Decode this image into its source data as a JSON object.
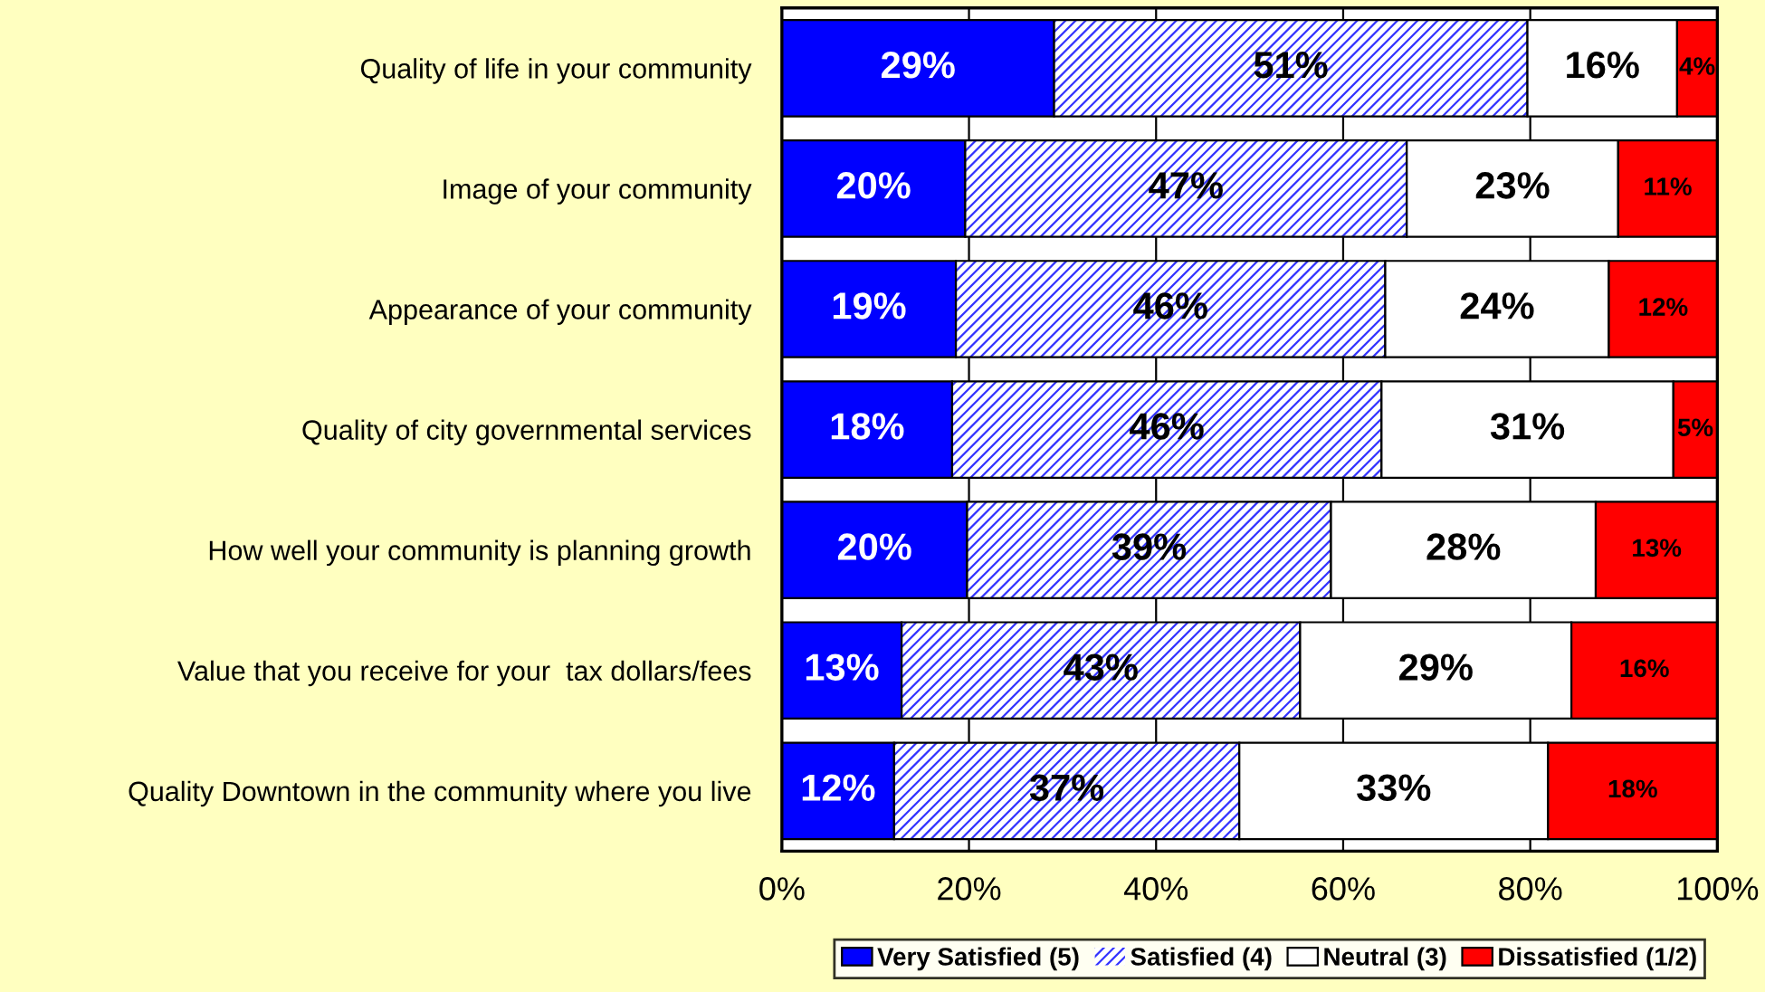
{
  "chart_data": {
    "type": "bar",
    "orientation": "horizontal",
    "stacked": true,
    "categories": [
      "Quality of life in your community",
      "Image of your community",
      "Appearance of your community",
      "Quality of city governmental services",
      "How well your community is planning growth",
      "Value that you receive for your  tax dollars/fees",
      "Quality Downtown in the community where you live"
    ],
    "series": [
      {
        "name": "Very Satisfied (5)",
        "color": "#0000ff",
        "values": [
          29.1,
          19.6,
          18.6,
          18.2,
          19.8,
          12.8,
          12.0
        ],
        "value_labels": [
          "29%",
          "20%",
          "19%",
          "18%",
          "20%",
          "13%",
          "12%"
        ]
      },
      {
        "name": "Satisfied (4)",
        "color": "#3333ff",
        "values": [
          50.6,
          47.2,
          45.9,
          45.9,
          38.9,
          42.6,
          36.9
        ],
        "value_labels": [
          "51%",
          "47%",
          "46%",
          "46%",
          "39%",
          "43%",
          "37%"
        ]
      },
      {
        "name": "Neutral (3)",
        "color": "#ffffff",
        "values": [
          16.0,
          22.6,
          23.9,
          31.2,
          28.3,
          29.0,
          33.0
        ],
        "value_labels": [
          "16%",
          "23%",
          "24%",
          "31%",
          "28%",
          "29%",
          "33%"
        ]
      },
      {
        "name": "Dissatisfied (1/2)",
        "color": "#ff0000",
        "values": [
          4.3,
          10.6,
          11.6,
          4.7,
          13.0,
          15.6,
          18.1
        ],
        "value_labels": [
          "4%",
          "11%",
          "12%",
          "5%",
          "13%",
          "16%",
          "18%"
        ]
      }
    ],
    "xlim": [
      0,
      100
    ],
    "xticks": [
      {
        "value": 0,
        "label": "0%"
      },
      {
        "value": 20,
        "label": "20%"
      },
      {
        "value": 40,
        "label": "40%"
      },
      {
        "value": 60,
        "label": "60%"
      },
      {
        "value": 80,
        "label": "80%"
      },
      {
        "value": 100,
        "label": "100%"
      }
    ],
    "grid": "x",
    "legend": "bottom right"
  }
}
